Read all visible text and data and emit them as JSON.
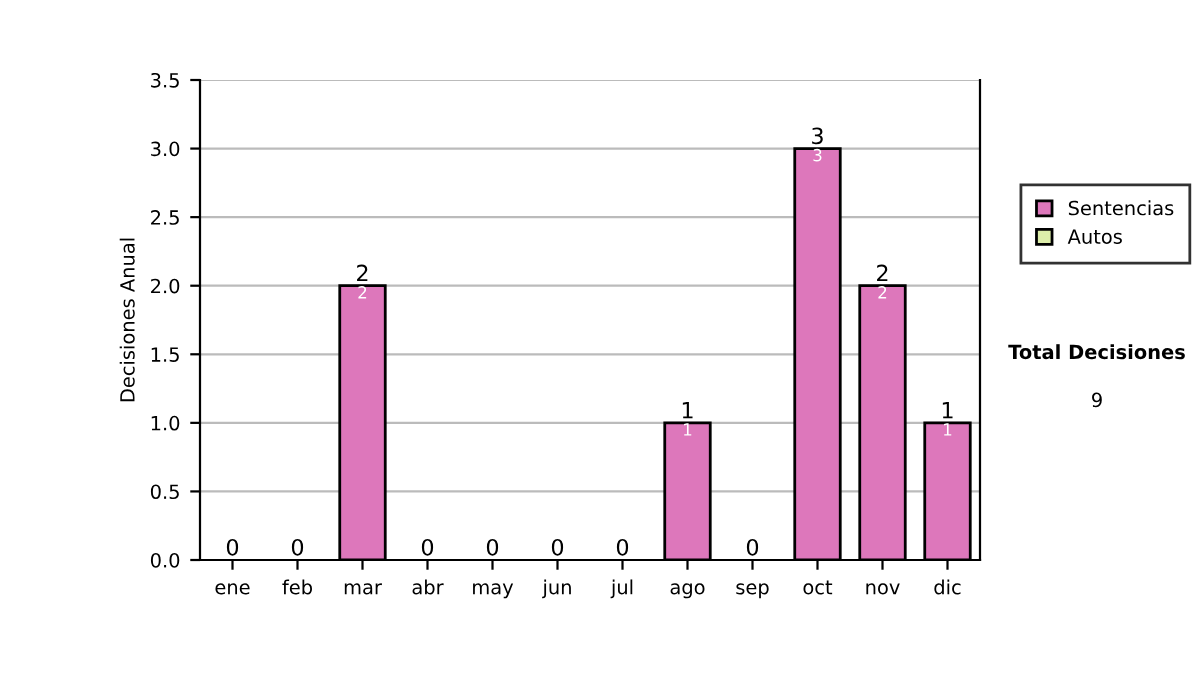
{
  "chart_data": {
    "type": "bar",
    "stacked": true,
    "ylabel": "Decisiones Anual",
    "categories": [
      "ene",
      "feb",
      "mar",
      "abr",
      "may",
      "jun",
      "jul",
      "ago",
      "sep",
      "oct",
      "nov",
      "dic"
    ],
    "series": [
      {
        "name": "Sentencias",
        "color": "#dd77bb",
        "values": [
          0,
          0,
          2,
          0,
          0,
          0,
          0,
          1,
          0,
          3,
          2,
          1
        ],
        "value_labels": [
          null,
          null,
          "2",
          null,
          null,
          null,
          null,
          "1",
          null,
          "3",
          "2",
          "1"
        ]
      },
      {
        "name": "Autos",
        "color": "#ddeeaa",
        "values": [
          0,
          0,
          0,
          0,
          0,
          0,
          0,
          0,
          0,
          0,
          0,
          0
        ]
      }
    ],
    "totals": [
      "0",
      "0",
      "2",
      "0",
      "0",
      "0",
      "0",
      "1",
      "0",
      "3",
      "2",
      "1"
    ],
    "ylim": [
      0,
      3.5
    ],
    "yticks": [
      "0.0",
      "0.5",
      "1.0",
      "1.5",
      "2.0",
      "2.5",
      "3.0",
      "3.5"
    ],
    "grid": "y",
    "legend": "right",
    "annotations": [
      "Total Decisiones",
      "9"
    ]
  }
}
